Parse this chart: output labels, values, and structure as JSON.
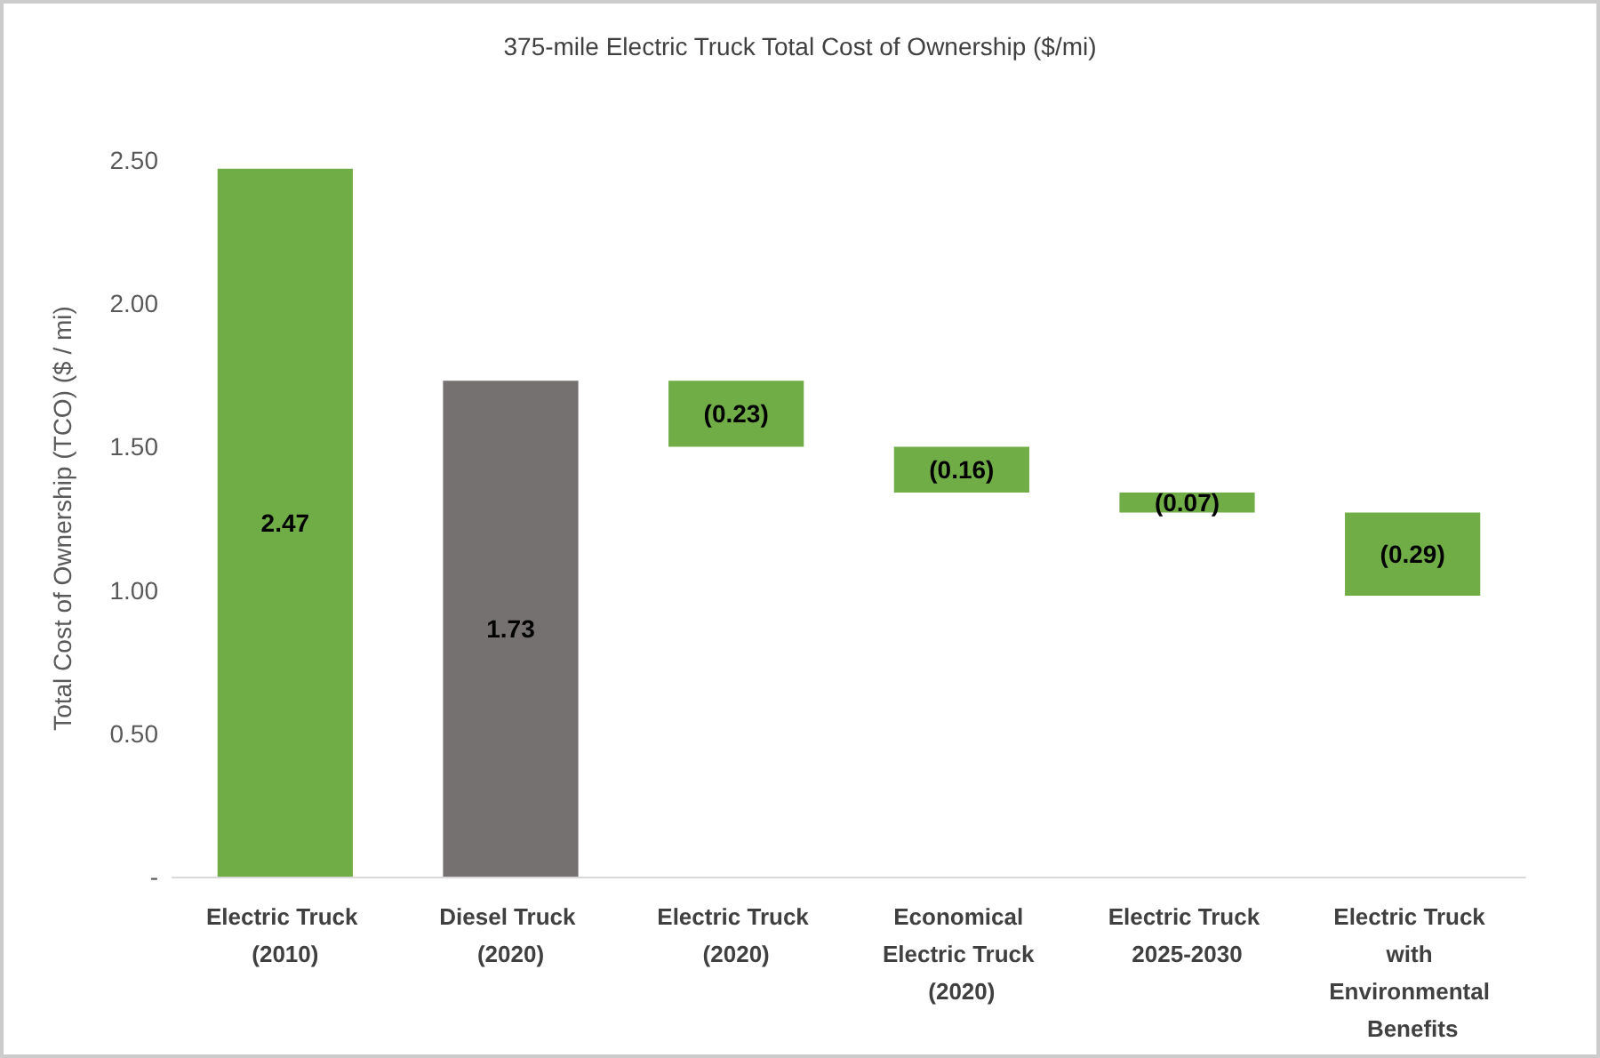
{
  "chart_data": {
    "type": "bar",
    "title": "375-mile Electric Truck Total Cost of Ownership ($/mi)",
    "ylabel": "Total Cost of Ownership (TCO) ($ / mi)",
    "categories": [
      "Electric Truck (2010)",
      "Diesel Truck (2020)",
      "Electric Truck (2020)",
      "Economical Electric Truck (2020)",
      "Electric Truck 2025-2030",
      "Electric Truck with Environmental Benefits"
    ],
    "values": [
      2.47,
      1.73,
      -0.23,
      -0.16,
      -0.07,
      -0.29
    ],
    "base": [
      0,
      0,
      1.73,
      1.5,
      1.34,
      1.27
    ],
    "colors": [
      "#70ad47",
      "#767171",
      "#70ad47",
      "#70ad47",
      "#70ad47",
      "#70ad47"
    ],
    "value_labels": [
      "2.47",
      "1.73",
      "(0.23)",
      "(0.16)",
      "(0.07)",
      "(0.29)"
    ],
    "ylim": [
      0,
      2.5
    ],
    "yticks": [
      {
        "value": 0,
        "label": "-"
      },
      {
        "value": 0.5,
        "label": "0.50"
      },
      {
        "value": 1,
        "label": "1.00"
      },
      {
        "value": 1.5,
        "label": "1.50"
      },
      {
        "value": 2,
        "label": "2.00"
      },
      {
        "value": 2.5,
        "label": "2.50"
      }
    ],
    "grid": false
  }
}
